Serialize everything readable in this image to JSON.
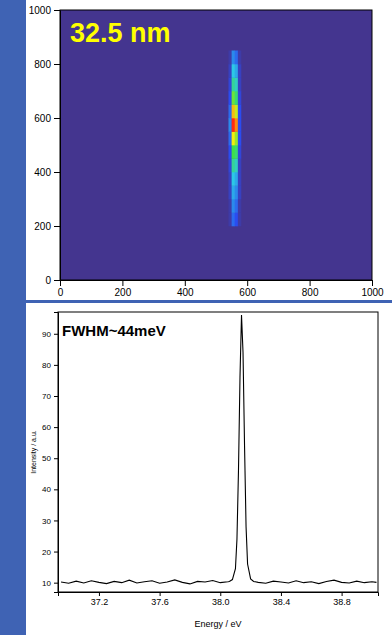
{
  "chart_data": [
    {
      "type": "heatmap",
      "annotation": "32.5 nm",
      "x_bins": [
        540,
        550,
        560,
        570,
        580
      ],
      "y_bins": [
        200,
        250,
        300,
        350,
        400,
        450,
        500,
        550,
        600,
        650,
        700,
        750,
        800,
        850
      ],
      "z": [
        [
          0.05,
          0.25,
          0.2,
          0.05
        ],
        [
          0.05,
          0.3,
          0.25,
          0.05
        ],
        [
          0.1,
          0.35,
          0.3,
          0.1
        ],
        [
          0.1,
          0.4,
          0.35,
          0.1
        ],
        [
          0.15,
          0.5,
          0.45,
          0.1
        ],
        [
          0.2,
          0.6,
          0.55,
          0.15
        ],
        [
          0.25,
          0.8,
          0.7,
          0.2
        ],
        [
          0.3,
          1.0,
          0.9,
          0.2
        ],
        [
          0.25,
          0.85,
          0.75,
          0.2
        ],
        [
          0.2,
          0.65,
          0.55,
          0.15
        ],
        [
          0.15,
          0.5,
          0.45,
          0.1
        ],
        [
          0.1,
          0.4,
          0.35,
          0.1
        ],
        [
          0.05,
          0.3,
          0.25,
          0.05
        ]
      ],
      "zlim": [
        0,
        1
      ],
      "xlim": [
        0,
        1000
      ],
      "xticks": [
        0,
        200,
        400,
        600,
        800,
        1000
      ],
      "ylim": [
        0,
        1000
      ],
      "yticks": [
        0,
        200,
        400,
        600,
        800,
        1000
      ]
    },
    {
      "type": "line",
      "annotation": "FWHM~44meV",
      "xlabel": "Energy / eV",
      "ylabel": "Intensity / a.u.",
      "color": "#000000",
      "x": [
        36.95,
        37.0,
        37.05,
        37.1,
        37.15,
        37.2,
        37.25,
        37.3,
        37.35,
        37.4,
        37.45,
        37.5,
        37.55,
        37.6,
        37.65,
        37.7,
        37.75,
        37.8,
        37.85,
        37.9,
        37.95,
        38.0,
        38.05,
        38.06,
        38.08,
        38.1,
        38.11,
        38.12,
        38.13,
        38.14,
        38.15,
        38.16,
        38.17,
        38.18,
        38.2,
        38.22,
        38.25,
        38.3,
        38.35,
        38.4,
        38.45,
        38.5,
        38.55,
        38.6,
        38.65,
        38.7,
        38.75,
        38.8,
        38.85,
        38.9,
        38.95,
        39.0,
        39.03
      ],
      "values": [
        10.2,
        9.8,
        10.5,
        9.9,
        10.6,
        10.1,
        9.7,
        10.4,
        10.0,
        10.8,
        9.9,
        10.3,
        10.6,
        9.8,
        10.2,
        10.9,
        10.1,
        9.6,
        10.4,
        10.2,
        10.7,
        10.0,
        10.3,
        10.4,
        11.0,
        14.5,
        24,
        46,
        76,
        96,
        84,
        54,
        28,
        16,
        11.2,
        10.4,
        10.1,
        9.8,
        10.5,
        10.2,
        9.9,
        10.6,
        10.0,
        10.3,
        9.7,
        10.4,
        10.8,
        10.1,
        9.9,
        10.5,
        10.0,
        10.3,
        10.1
      ],
      "xlim": [
        36.93,
        39.04
      ],
      "xticks": [
        37.2,
        37.6,
        {
          "value": 38,
          "label": "38.0"
        },
        38.4,
        38.8
      ],
      "ylim": [
        7,
        97
      ],
      "yticks": [
        10,
        20,
        30,
        40,
        50,
        60,
        70,
        80,
        90
      ]
    }
  ]
}
